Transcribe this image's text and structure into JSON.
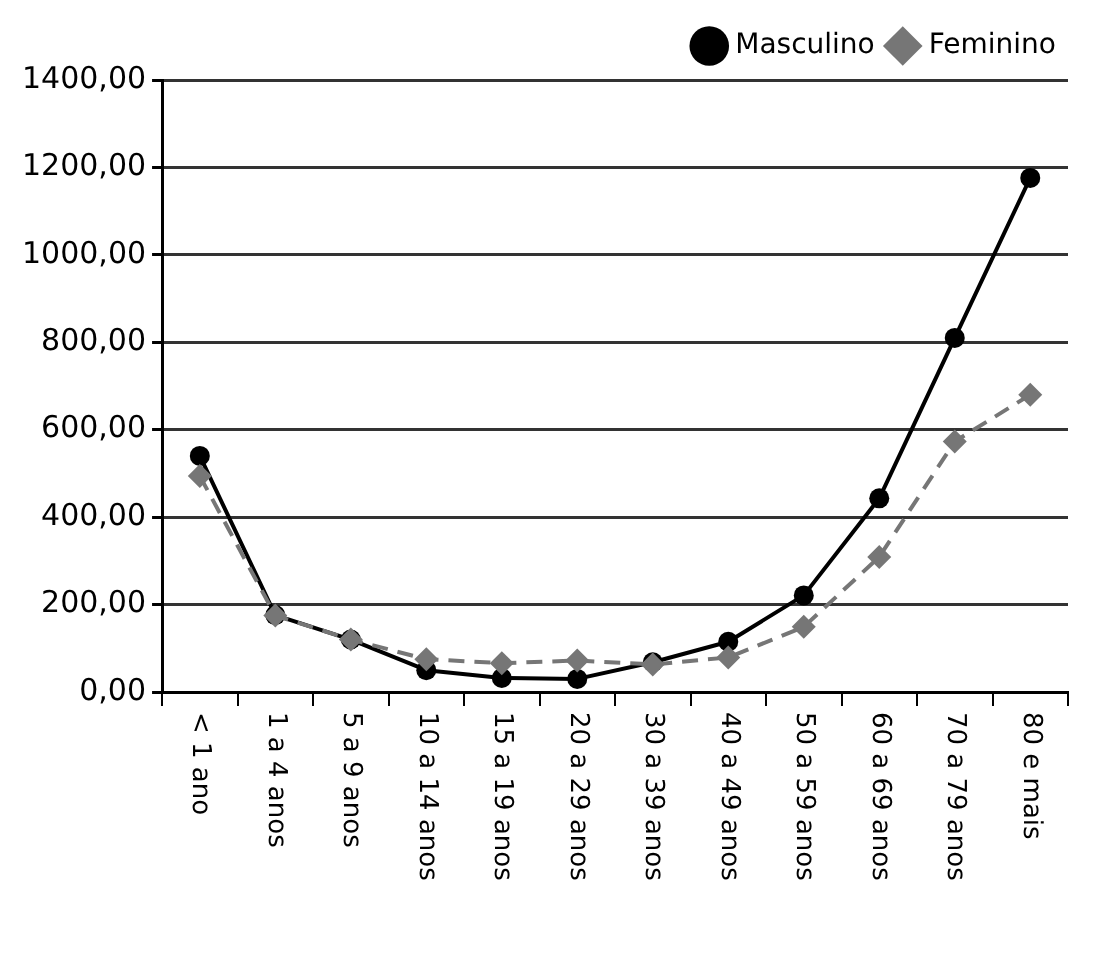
{
  "chart_data": {
    "type": "line",
    "categories": [
      "< 1 ano",
      "1 a 4 anos",
      "5 a 9 anos",
      "10 a 14 anos",
      "15 a 19 anos",
      "20 a 29 anos",
      "30 a 39 anos",
      "40 a 49 anos",
      "50 a 59 anos",
      "60 a 69 anos",
      "70 a 79 anos",
      "80 e mais"
    ],
    "series": [
      {
        "name": "Masculino",
        "color": "#000000",
        "marker": "circle",
        "line_style": "solid",
        "values": [
          540,
          176,
          120,
          50,
          32,
          30,
          68,
          115,
          221,
          443,
          810,
          1176
        ]
      },
      {
        "name": "Feminino",
        "color": "#767676",
        "marker": "diamond",
        "line_style": "dashed",
        "values": [
          494,
          175,
          120,
          75,
          66,
          72,
          63,
          79,
          149,
          309,
          573,
          680
        ]
      }
    ],
    "ylim": [
      0,
      1400
    ],
    "yticks": [
      {
        "value": 0,
        "label": "0,00"
      },
      {
        "value": 200,
        "label": "200,00"
      },
      {
        "value": 400,
        "label": "400,00"
      },
      {
        "value": 600,
        "label": "600,00"
      },
      {
        "value": 800,
        "label": "800,00"
      },
      {
        "value": 1000,
        "label": "1000,00"
      },
      {
        "value": 1200,
        "label": "1200,00"
      },
      {
        "value": 1400,
        "label": "1400,00"
      }
    ],
    "grid": "y",
    "legend": "top right"
  }
}
